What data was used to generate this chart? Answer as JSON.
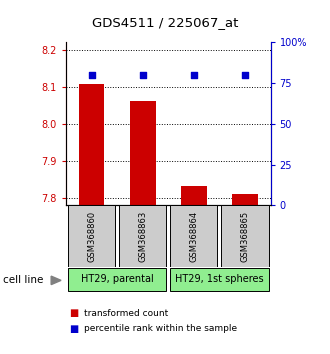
{
  "title": "GDS4511 / 225067_at",
  "samples": [
    "GSM368860",
    "GSM368863",
    "GSM368864",
    "GSM368865"
  ],
  "bar_values": [
    8.107,
    8.062,
    7.832,
    7.81
  ],
  "percentile_values": [
    80,
    80,
    80,
    80
  ],
  "ylim_left": [
    7.78,
    8.22
  ],
  "ylim_right": [
    0,
    100
  ],
  "yticks_left": [
    7.8,
    7.9,
    8.0,
    8.1,
    8.2
  ],
  "yticks_right": [
    0,
    25,
    50,
    75,
    100
  ],
  "ytick_labels_right": [
    "0",
    "25",
    "50",
    "75",
    "100%"
  ],
  "bar_color": "#cc0000",
  "dot_color": "#0000cc",
  "bar_bottom": 7.78,
  "cell_line_groups": [
    {
      "label": "HT29, parental",
      "samples": [
        0,
        1
      ]
    },
    {
      "label": "HT29, 1st spheres",
      "samples": [
        2,
        3
      ]
    }
  ],
  "cell_line_colors": [
    "#90ee90",
    "#90ee90"
  ],
  "sample_box_color": "#cccccc",
  "legend_bar_label": "transformed count",
  "legend_dot_label": "percentile rank within the sample",
  "cell_line_label": "cell line",
  "background_color": "#ffffff"
}
